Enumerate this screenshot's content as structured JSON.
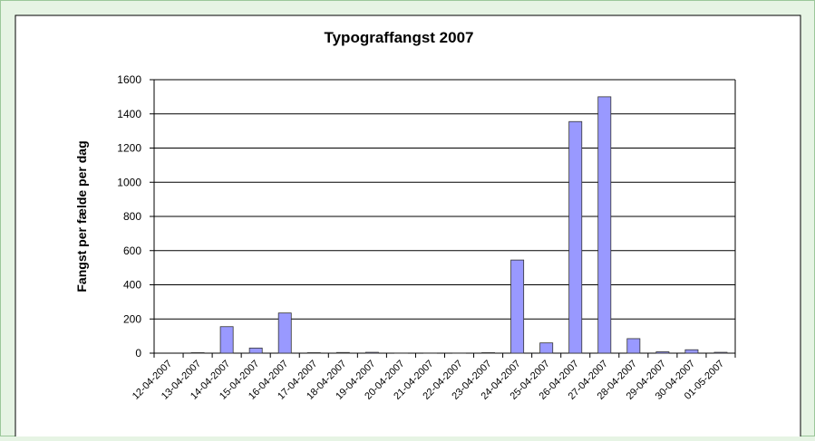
{
  "chart_data": {
    "type": "bar",
    "title": "Typograffangst 2007",
    "y_label": "Fangst per fælde per dag",
    "categories": [
      "12-04-2007",
      "13-04-2007",
      "14-04-2007",
      "15-04-2007",
      "16-04-2007",
      "17-04-2007",
      "18-04-2007",
      "19-04-2007",
      "20-04-2007",
      "21-04-2007",
      "22-04-2007",
      "23-04-2007",
      "24-04-2007",
      "25-04-2007",
      "26-04-2007",
      "27-04-2007",
      "28-04-2007",
      "29-04-2007",
      "30-04-2007",
      "01-05-2007"
    ],
    "values": [
      0,
      3,
      155,
      30,
      235,
      3,
      4,
      5,
      1,
      1,
      1,
      3,
      545,
      60,
      1355,
      1500,
      85,
      8,
      20,
      5
    ],
    "color": "#9999ff",
    "ylim": [
      0,
      1600
    ],
    "yticks": [
      0,
      200,
      400,
      600,
      800,
      1000,
      1200,
      1400,
      1600
    ],
    "grid": true
  }
}
